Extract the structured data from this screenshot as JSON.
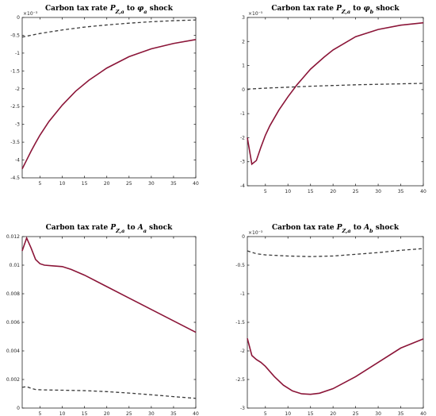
{
  "chart_data": [
    {
      "type": "line",
      "title_parts": [
        {
          "text": "Carbon tax rate "
        },
        {
          "text": "P",
          "italic": true
        },
        {
          "text": "Z,a",
          "sub": true,
          "italic": true
        },
        {
          "text": " to "
        },
        {
          "text": "φ",
          "italic": true
        },
        {
          "text": "a",
          "sub": true,
          "italic": true
        },
        {
          "text": " shock"
        }
      ],
      "exponent": "×10⁻³",
      "xlim": [
        1,
        40
      ],
      "ylim": [
        -4.5,
        0
      ],
      "xticks": [
        5,
        10,
        15,
        20,
        25,
        30,
        35,
        40
      ],
      "yticks": [
        -4.5,
        -4,
        -3.5,
        -3,
        -2.5,
        -2,
        -1.5,
        -1,
        -0.5,
        0
      ],
      "ytick_labels": [
        "-4.5",
        "-4",
        "-3.5",
        "-3",
        "-2.5",
        "-2",
        "-1.5",
        "-1",
        "-0.5",
        "0"
      ],
      "series": [
        {
          "style": "solid",
          "x": [
            1,
            2,
            3,
            4,
            5,
            7,
            10,
            13,
            16,
            20,
            25,
            30,
            35,
            40
          ],
          "y": [
            -4.25,
            -4.0,
            -3.75,
            -3.52,
            -3.3,
            -2.92,
            -2.46,
            -2.07,
            -1.76,
            -1.42,
            -1.1,
            -0.88,
            -0.73,
            -0.62
          ]
        },
        {
          "style": "dashed",
          "x": [
            1,
            5,
            10,
            15,
            20,
            25,
            30,
            35,
            40
          ],
          "y": [
            -0.55,
            -0.45,
            -0.35,
            -0.27,
            -0.21,
            -0.16,
            -0.12,
            -0.09,
            -0.07
          ]
        }
      ]
    },
    {
      "type": "line",
      "title_parts": [
        {
          "text": "Carbon tax rate "
        },
        {
          "text": "P",
          "italic": true
        },
        {
          "text": "Z,a",
          "sub": true,
          "italic": true
        },
        {
          "text": " to "
        },
        {
          "text": "φ",
          "italic": true
        },
        {
          "text": "b",
          "sub": true,
          "italic": true
        },
        {
          "text": " shock"
        }
      ],
      "exponent": "×10⁻⁵",
      "xlim": [
        1,
        40
      ],
      "ylim": [
        -4,
        3
      ],
      "xticks": [
        5,
        10,
        15,
        20,
        25,
        30,
        35,
        40
      ],
      "yticks": [
        -4,
        -3,
        -2,
        -1,
        0,
        1,
        2,
        3
      ],
      "ytick_labels": [
        "-4",
        "-3",
        "-2",
        "-1",
        "0",
        "1",
        "2",
        "3"
      ],
      "series": [
        {
          "style": "solid",
          "x": [
            1,
            2,
            3,
            4,
            5,
            6,
            8,
            10,
            12,
            15,
            18,
            20,
            25,
            30,
            35,
            40
          ],
          "y": [
            -2.0,
            -3.1,
            -2.95,
            -2.4,
            -1.9,
            -1.5,
            -0.85,
            -0.3,
            0.2,
            0.85,
            1.35,
            1.65,
            2.2,
            2.5,
            2.68,
            2.78
          ]
        },
        {
          "style": "dashed",
          "x": [
            1,
            5,
            10,
            15,
            20,
            25,
            30,
            35,
            40
          ],
          "y": [
            0.02,
            0.06,
            0.1,
            0.14,
            0.17,
            0.2,
            0.22,
            0.24,
            0.26
          ]
        }
      ]
    },
    {
      "type": "line",
      "title_parts": [
        {
          "text": "Carbon tax rate "
        },
        {
          "text": "P",
          "italic": true
        },
        {
          "text": "Z,a",
          "sub": true,
          "italic": true
        },
        {
          "text": " to "
        },
        {
          "text": "A",
          "italic": true
        },
        {
          "text": "a",
          "sub": true,
          "italic": true
        },
        {
          "text": " shock"
        }
      ],
      "exponent": "",
      "xlim": [
        1,
        40
      ],
      "ylim": [
        0,
        0.012
      ],
      "xticks": [
        5,
        10,
        15,
        20,
        25,
        30,
        35,
        40
      ],
      "yticks": [
        0,
        0.002,
        0.004,
        0.006,
        0.008,
        0.01,
        0.012
      ],
      "ytick_labels": [
        "0",
        "0.002",
        "0.004",
        "0.006",
        "0.008",
        "0.01",
        "0.012"
      ],
      "series": [
        {
          "style": "solid",
          "x": [
            1,
            2,
            3,
            4,
            5,
            6,
            8,
            10,
            12,
            15,
            20,
            25,
            30,
            35,
            40
          ],
          "y": [
            0.011,
            0.0119,
            0.0112,
            0.0104,
            0.0101,
            0.01,
            0.00995,
            0.0099,
            0.0097,
            0.0093,
            0.0085,
            0.0077,
            0.0069,
            0.0061,
            0.0053
          ]
        },
        {
          "style": "dashed",
          "x": [
            1,
            2,
            3,
            4,
            5,
            6,
            10,
            15,
            20,
            25,
            30,
            35,
            40
          ],
          "y": [
            0.00145,
            0.0015,
            0.00138,
            0.0013,
            0.00128,
            0.00127,
            0.00125,
            0.00122,
            0.00115,
            0.00105,
            0.00093,
            0.0008,
            0.00068
          ]
        }
      ]
    },
    {
      "type": "line",
      "title_parts": [
        {
          "text": "Carbon tax rate "
        },
        {
          "text": "P",
          "italic": true
        },
        {
          "text": "Z,a",
          "sub": true,
          "italic": true
        },
        {
          "text": " to "
        },
        {
          "text": "A",
          "italic": true
        },
        {
          "text": "b",
          "sub": true,
          "italic": true
        },
        {
          "text": " shock"
        }
      ],
      "exponent": "×10⁻³",
      "xlim": [
        1,
        40
      ],
      "ylim": [
        -3,
        0
      ],
      "xticks": [
        5,
        10,
        15,
        20,
        25,
        30,
        35,
        40
      ],
      "yticks": [
        -3,
        -2.5,
        -2,
        -1.5,
        -1,
        -0.5,
        0
      ],
      "ytick_labels": [
        "-3",
        "-2.5",
        "-2",
        "-1.5",
        "-1",
        "-0.5",
        "0"
      ],
      "series": [
        {
          "style": "solid",
          "x": [
            1,
            2,
            3,
            4,
            5,
            7,
            9,
            11,
            13,
            15,
            17,
            20,
            25,
            30,
            35,
            40
          ],
          "y": [
            -1.78,
            -2.08,
            -2.15,
            -2.2,
            -2.27,
            -2.45,
            -2.6,
            -2.7,
            -2.75,
            -2.76,
            -2.74,
            -2.66,
            -2.45,
            -2.2,
            -1.95,
            -1.79
          ]
        },
        {
          "style": "dashed",
          "x": [
            1,
            3,
            5,
            10,
            15,
            20,
            25,
            30,
            35,
            40
          ],
          "y": [
            -0.25,
            -0.3,
            -0.32,
            -0.34,
            -0.35,
            -0.34,
            -0.31,
            -0.28,
            -0.24,
            -0.21
          ]
        }
      ]
    }
  ]
}
